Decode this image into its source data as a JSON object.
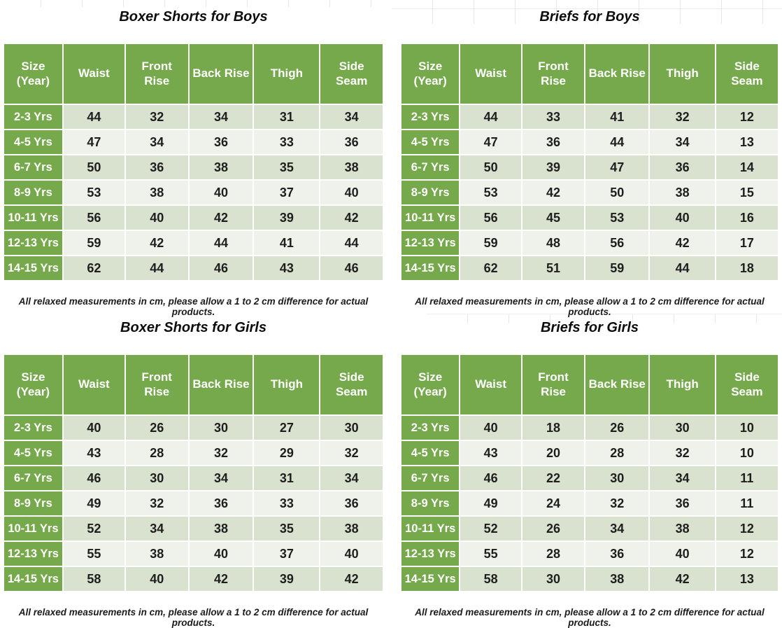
{
  "columns": [
    "Size\n(Year)",
    "Waist",
    "Front\nRise",
    "Back Rise",
    "Thigh",
    "Side\nSeam"
  ],
  "footnote": "All relaxed measurements in cm, please allow a 1 to 2 cm difference for actual products.",
  "colors": {
    "header_green": "#76A94C",
    "header_text": "#ffffff",
    "row_dark": "#D9E2CF",
    "row_light": "#EFF2EA",
    "cell_text": "#1e1e1e",
    "gridline": "#e7e7e7"
  },
  "tables": [
    {
      "title": "Boxer Shorts for Boys",
      "rows": [
        [
          "2-3 Yrs",
          "44",
          "32",
          "34",
          "31",
          "34"
        ],
        [
          "4-5 Yrs",
          "47",
          "34",
          "36",
          "33",
          "36"
        ],
        [
          "6-7 Yrs",
          "50",
          "36",
          "38",
          "35",
          "38"
        ],
        [
          "8-9 Yrs",
          "53",
          "38",
          "40",
          "37",
          "40"
        ],
        [
          "10-11 Yrs",
          "56",
          "40",
          "42",
          "39",
          "42"
        ],
        [
          "12-13 Yrs",
          "59",
          "42",
          "44",
          "41",
          "44"
        ],
        [
          "14-15 Yrs",
          "62",
          "44",
          "46",
          "43",
          "46"
        ]
      ]
    },
    {
      "title": "Briefs for Boys",
      "rows": [
        [
          "2-3 Yrs",
          "44",
          "33",
          "41",
          "32",
          "12"
        ],
        [
          "4-5 Yrs",
          "47",
          "36",
          "44",
          "34",
          "13"
        ],
        [
          "6-7 Yrs",
          "50",
          "39",
          "47",
          "36",
          "14"
        ],
        [
          "8-9 Yrs",
          "53",
          "42",
          "50",
          "38",
          "15"
        ],
        [
          "10-11 Yrs",
          "56",
          "45",
          "53",
          "40",
          "16"
        ],
        [
          "12-13 Yrs",
          "59",
          "48",
          "56",
          "42",
          "17"
        ],
        [
          "14-15 Yrs",
          "62",
          "51",
          "59",
          "44",
          "18"
        ]
      ]
    },
    {
      "title": "Boxer Shorts for Girls",
      "rows": [
        [
          "2-3 Yrs",
          "40",
          "26",
          "30",
          "27",
          "30"
        ],
        [
          "4-5 Yrs",
          "43",
          "28",
          "32",
          "29",
          "32"
        ],
        [
          "6-7 Yrs",
          "46",
          "30",
          "34",
          "31",
          "34"
        ],
        [
          "8-9 Yrs",
          "49",
          "32",
          "36",
          "33",
          "36"
        ],
        [
          "10-11 Yrs",
          "52",
          "34",
          "38",
          "35",
          "38"
        ],
        [
          "12-13 Yrs",
          "55",
          "38",
          "40",
          "37",
          "40"
        ],
        [
          "14-15 Yrs",
          "58",
          "40",
          "42",
          "39",
          "42"
        ]
      ]
    },
    {
      "title": "Briefs for Girls",
      "rows": [
        [
          "2-3 Yrs",
          "40",
          "18",
          "26",
          "30",
          "10"
        ],
        [
          "4-5 Yrs",
          "43",
          "20",
          "28",
          "32",
          "10"
        ],
        [
          "6-7 Yrs",
          "46",
          "22",
          "30",
          "34",
          "11"
        ],
        [
          "8-9 Yrs",
          "49",
          "24",
          "32",
          "36",
          "11"
        ],
        [
          "10-11 Yrs",
          "52",
          "26",
          "34",
          "38",
          "12"
        ],
        [
          "12-13 Yrs",
          "55",
          "28",
          "36",
          "40",
          "12"
        ],
        [
          "14-15 Yrs",
          "58",
          "30",
          "38",
          "42",
          "13"
        ]
      ]
    }
  ]
}
